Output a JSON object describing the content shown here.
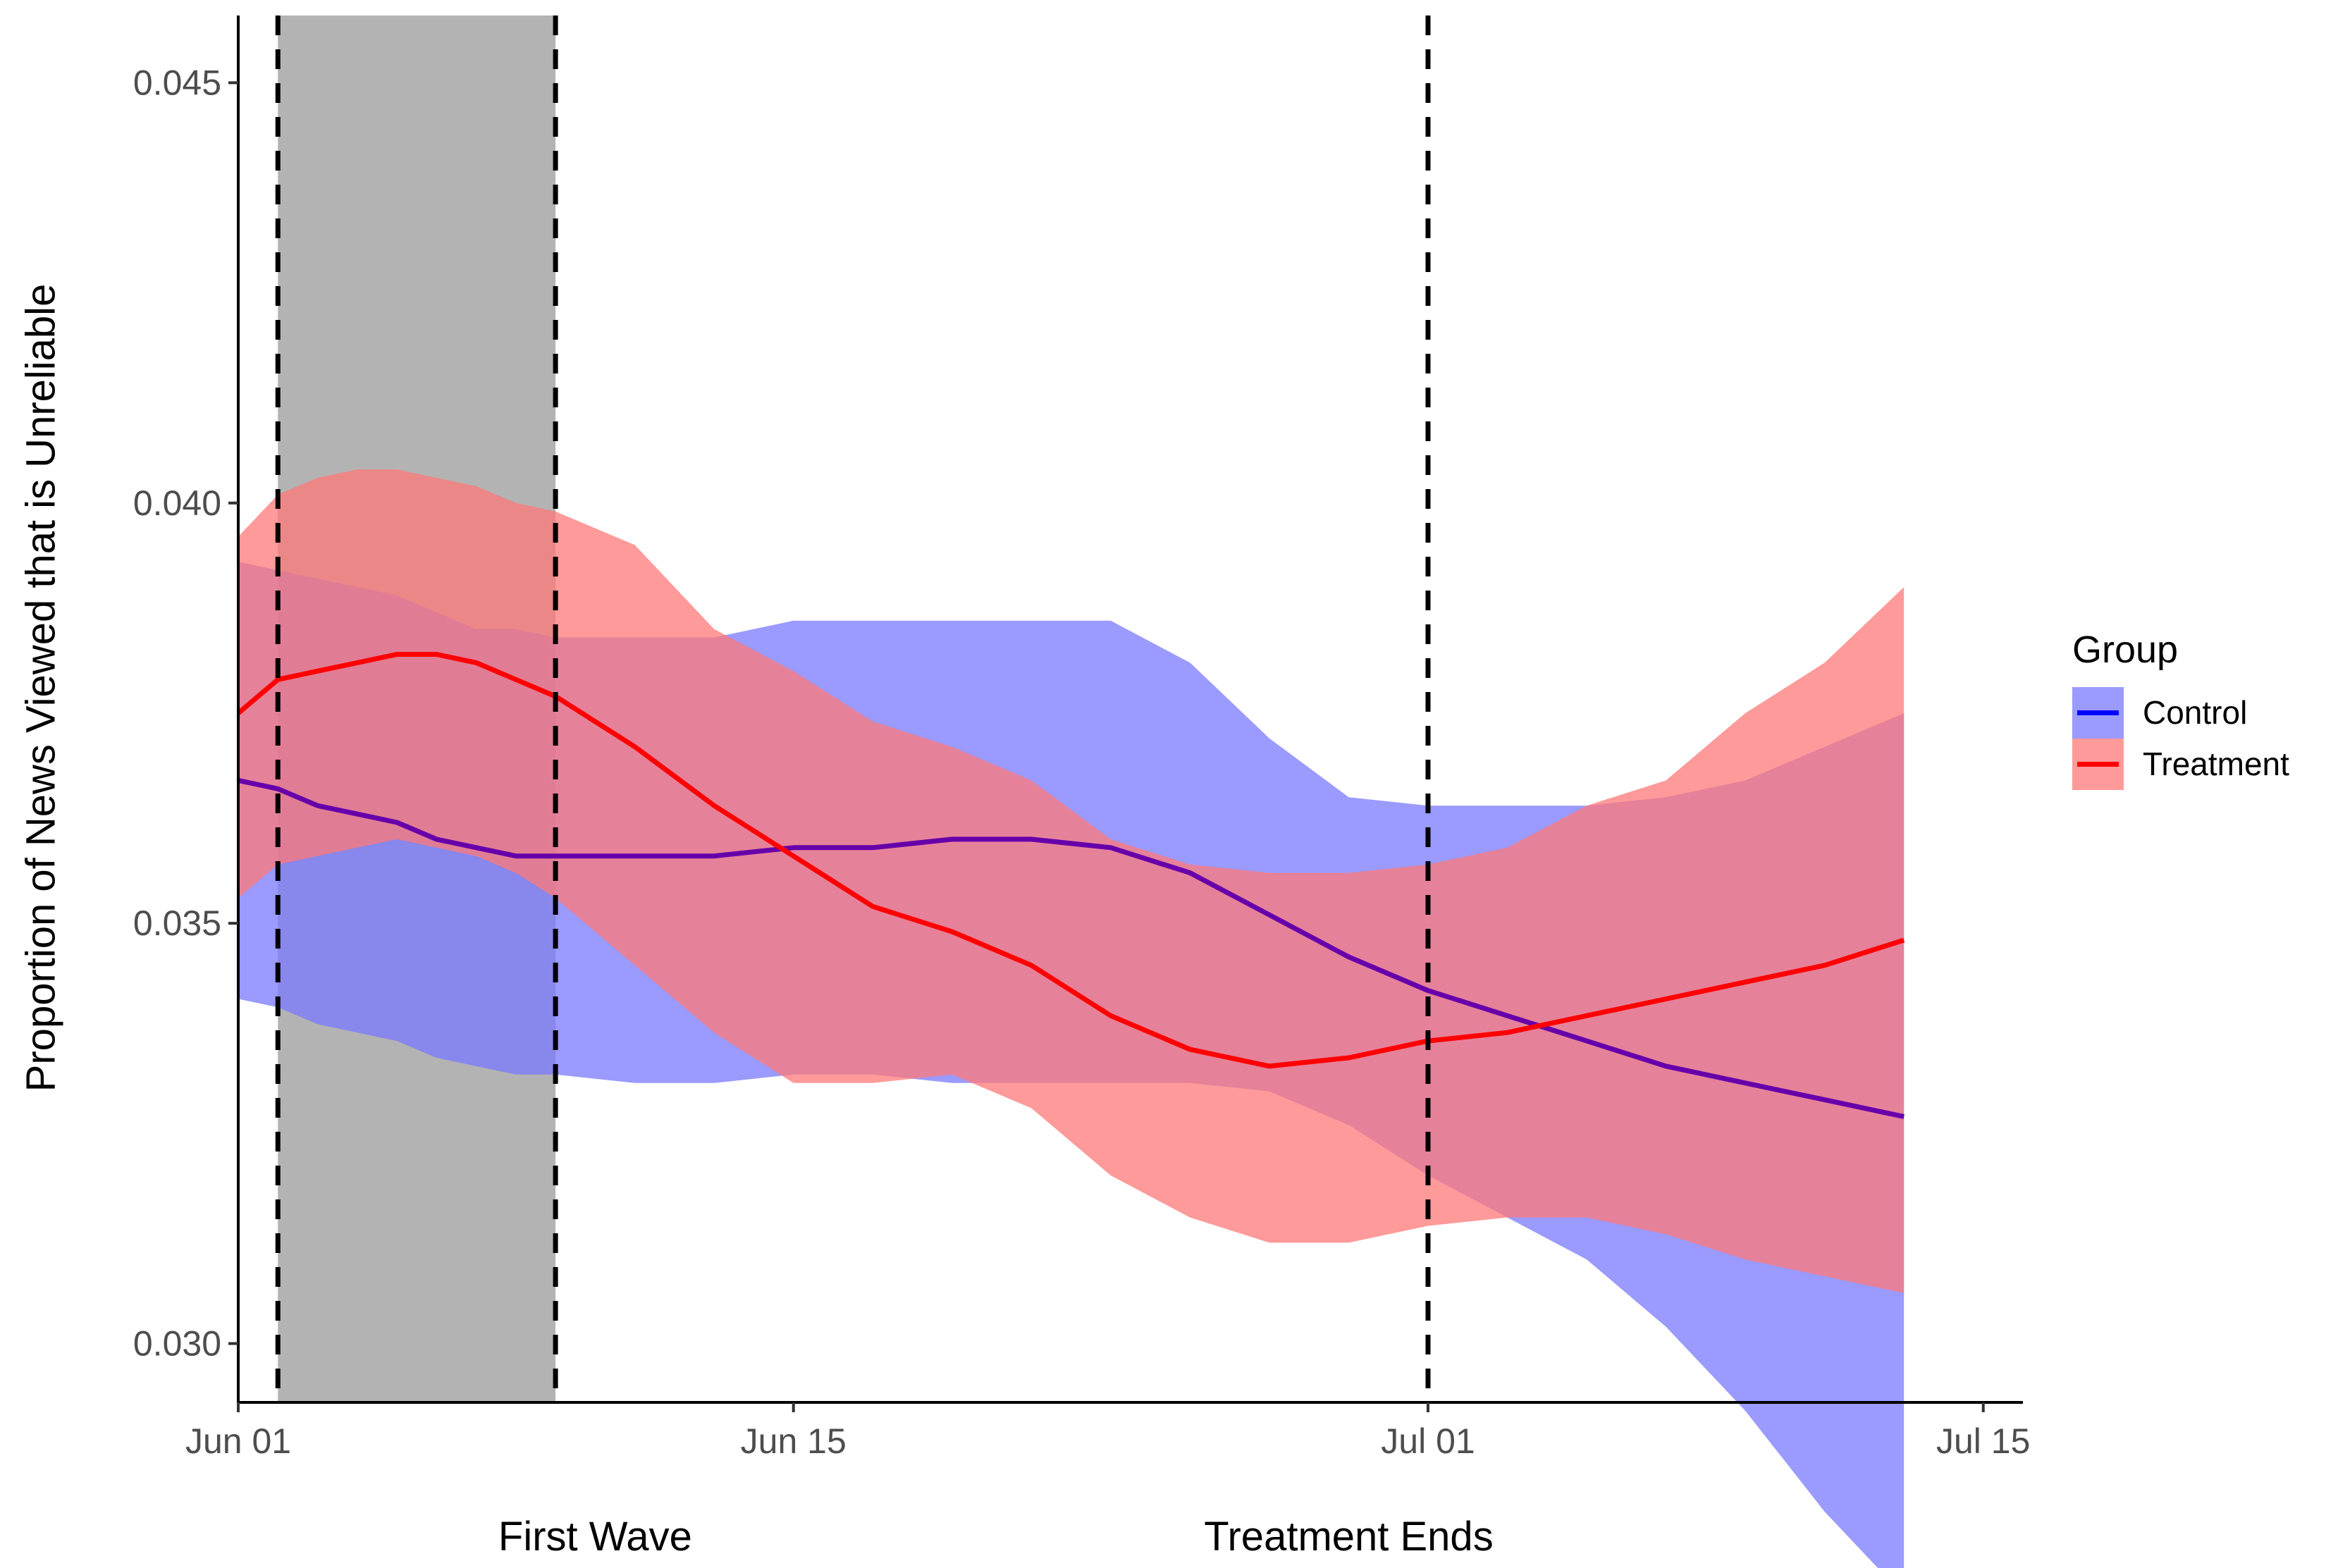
{
  "chart_data": {
    "type": "line",
    "ylabel": "Proportion of News Viewed that is Unreliable",
    "xlabel": "",
    "ylim": [
      0.0293,
      0.0458
    ],
    "xlim": [
      "2021-06-01",
      "2021-07-16"
    ],
    "x_ticks": [
      {
        "date": "2021-06-01",
        "label": "Jun 01"
      },
      {
        "date": "2021-06-15",
        "label": "Jun 15"
      },
      {
        "date": "2021-07-01",
        "label": "Jul 01"
      },
      {
        "date": "2021-07-15",
        "label": "Jul 15"
      }
    ],
    "y_ticks": [
      {
        "value": 0.03,
        "label": "0.030"
      },
      {
        "value": 0.035,
        "label": "0.035"
      },
      {
        "value": 0.04,
        "label": "0.040"
      },
      {
        "value": 0.045,
        "label": "0.045"
      }
    ],
    "grid": false,
    "legend": {
      "title": "Group",
      "position": "right"
    },
    "shaded_region": {
      "start": "2021-06-02",
      "end": "2021-06-09",
      "color": "#b3b3b3"
    },
    "vlines": [
      "2021-06-02",
      "2021-06-09",
      "2021-07-01"
    ],
    "annotations": [
      {
        "label": "First Wave",
        "date": "2021-06-10"
      },
      {
        "label": "Treatment Ends",
        "date": "2021-06-29"
      }
    ],
    "series": [
      {
        "name": "Control",
        "color": "#0000ff",
        "band_color": "#7878ff",
        "x": [
          "2021-06-01",
          "2021-06-02",
          "2021-06-03",
          "2021-06-04",
          "2021-06-05",
          "2021-06-06",
          "2021-06-07",
          "2021-06-08",
          "2021-06-09",
          "2021-06-11",
          "2021-06-13",
          "2021-06-15",
          "2021-06-17",
          "2021-06-19",
          "2021-06-21",
          "2021-06-23",
          "2021-06-25",
          "2021-06-27",
          "2021-06-29",
          "2021-07-01",
          "2021-07-03",
          "2021-07-05",
          "2021-07-07",
          "2021-07-09",
          "2021-07-11",
          "2021-07-13"
        ],
        "values": [
          0.0367,
          0.0366,
          0.0364,
          0.0363,
          0.0362,
          0.036,
          0.0359,
          0.0358,
          0.0358,
          0.0358,
          0.0358,
          0.0359,
          0.0359,
          0.036,
          0.036,
          0.0359,
          0.0356,
          0.0351,
          0.0346,
          0.0342,
          0.0339,
          0.0336,
          0.0333,
          0.0331,
          0.0329,
          0.0327
        ],
        "lower": [
          0.0341,
          0.034,
          0.0338,
          0.0337,
          0.0336,
          0.0334,
          0.0333,
          0.0332,
          0.0332,
          0.0331,
          0.0331,
          0.0332,
          0.0332,
          0.0331,
          0.0331,
          0.0331,
          0.0331,
          0.033,
          0.0326,
          0.032,
          0.0315,
          0.031,
          0.0302,
          0.0292,
          0.028,
          0.027
        ],
        "upper": [
          0.0393,
          0.0392,
          0.0391,
          0.039,
          0.0389,
          0.0387,
          0.0385,
          0.0385,
          0.0384,
          0.0384,
          0.0384,
          0.0386,
          0.0386,
          0.0386,
          0.0386,
          0.0386,
          0.0381,
          0.0372,
          0.0365,
          0.0364,
          0.0364,
          0.0364,
          0.0365,
          0.0367,
          0.0371,
          0.0375
        ]
      },
      {
        "name": "Treatment",
        "color": "#ff0000",
        "band_color": "#ff7878",
        "x": [
          "2021-06-01",
          "2021-06-02",
          "2021-06-03",
          "2021-06-04",
          "2021-06-05",
          "2021-06-06",
          "2021-06-07",
          "2021-06-08",
          "2021-06-09",
          "2021-06-11",
          "2021-06-13",
          "2021-06-15",
          "2021-06-17",
          "2021-06-19",
          "2021-06-21",
          "2021-06-23",
          "2021-06-25",
          "2021-06-27",
          "2021-06-29",
          "2021-07-01",
          "2021-07-03",
          "2021-07-05",
          "2021-07-07",
          "2021-07-09",
          "2021-07-11",
          "2021-07-13"
        ],
        "values": [
          0.0375,
          0.0379,
          0.038,
          0.0381,
          0.0382,
          0.0382,
          0.0381,
          0.0379,
          0.0377,
          0.0371,
          0.0364,
          0.0358,
          0.0352,
          0.0349,
          0.0345,
          0.0339,
          0.0335,
          0.0333,
          0.0334,
          0.0336,
          0.0337,
          0.0339,
          0.0341,
          0.0343,
          0.0345,
          0.0348
        ],
        "lower": [
          0.0353,
          0.0357,
          0.0358,
          0.0359,
          0.036,
          0.0359,
          0.0358,
          0.0356,
          0.0353,
          0.0345,
          0.0337,
          0.0331,
          0.0331,
          0.0332,
          0.0328,
          0.032,
          0.0315,
          0.0312,
          0.0312,
          0.0314,
          0.0315,
          0.0315,
          0.0313,
          0.031,
          0.0308,
          0.0306
        ],
        "upper": [
          0.0396,
          0.0401,
          0.0403,
          0.0404,
          0.0404,
          0.0403,
          0.0402,
          0.04,
          0.0399,
          0.0395,
          0.0385,
          0.038,
          0.0374,
          0.0371,
          0.0367,
          0.036,
          0.0357,
          0.0356,
          0.0356,
          0.0357,
          0.0359,
          0.0364,
          0.0367,
          0.0375,
          0.0381,
          0.039
        ]
      }
    ]
  }
}
